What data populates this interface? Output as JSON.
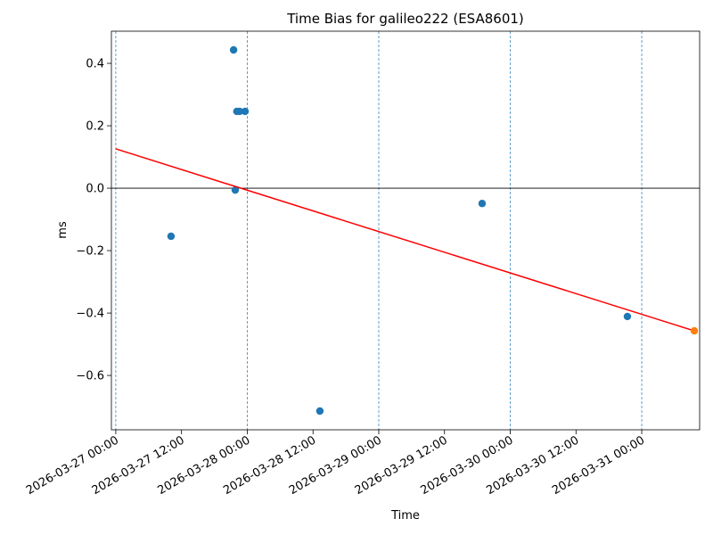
{
  "chart_data": {
    "type": "scatter",
    "title": "Time Bias for galileo222 (ESA8601)",
    "x_label": "Time",
    "y_label": "ms",
    "series": [
      {
        "type": "scatter",
        "color": "#1f77b4",
        "x": [
          "2026-03-27 10:05",
          "2026-03-27 21:30",
          "2026-03-27 21:48",
          "2026-03-27 22:06",
          "2026-03-27 22:36",
          "2026-03-27 23:36",
          "2026-03-28 13:15",
          "2026-03-29 18:52",
          "2026-03-30 21:23"
        ],
        "values": [
          -0.154,
          0.443,
          -0.006,
          0.246,
          0.246,
          0.246,
          -0.714,
          -0.049,
          -0.411
        ]
      },
      {
        "type": "line",
        "color": "#ff0000",
        "x": [
          "2026-03-27 00:00",
          "2026-03-31 09:36"
        ],
        "values": [
          0.126,
          -0.457
        ]
      },
      {
        "type": "scatter",
        "color": "#ff7f0e",
        "x": [
          "2026-03-31 09:36"
        ],
        "values": [
          -0.457
        ]
      }
    ],
    "xlim": [
      "2026-03-26 23:12",
      "2026-03-31 10:34"
    ],
    "xticks": [
      "2026-03-27 00:00",
      "2026-03-27 12:00",
      "2026-03-28 00:00",
      "2026-03-28 12:00",
      "2026-03-29 00:00",
      "2026-03-29 12:00",
      "2026-03-30 00:00",
      "2026-03-30 12:00",
      "2026-03-31 00:00"
    ],
    "ylim": [
      -0.774,
      0.503
    ],
    "yticks": [
      {
        "value": -0.6,
        "label": "−0.6"
      },
      {
        "value": -0.4,
        "label": "−0.4"
      },
      {
        "value": -0.2,
        "label": "−0.2"
      },
      {
        "value": 0,
        "label": "0.0"
      },
      0.2,
      0.4
    ],
    "vlines": [
      "2026-03-27 00:00",
      "2026-03-28 00:00",
      "2026-03-29 00:00",
      "2026-03-30 00:00",
      "2026-03-31 00:00"
    ],
    "vline_color": "#1f77b4",
    "hlines": [
      0
    ],
    "hline_color": "#000000"
  }
}
